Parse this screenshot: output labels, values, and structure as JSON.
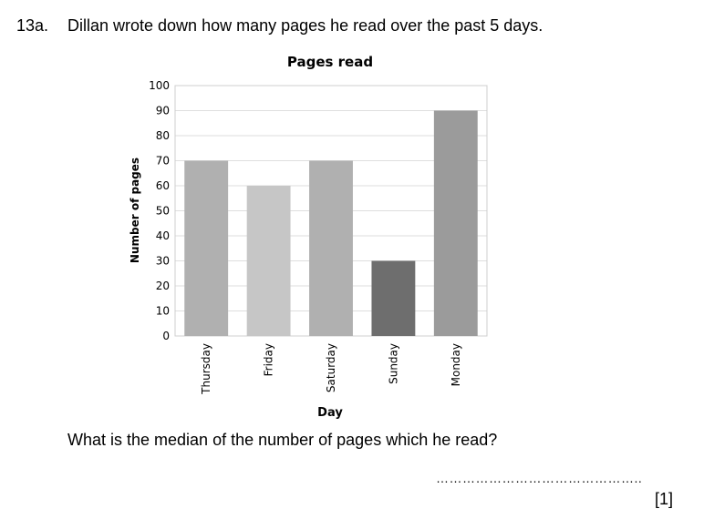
{
  "question": {
    "number": "13a.",
    "text": "Dillan wrote down how many pages he read over the past 5 days.",
    "prompt": "What is the median of the number of pages which he read?",
    "answer_line": "………………………………………..",
    "marks": "[1]"
  },
  "chart_data": {
    "type": "bar",
    "title": "Pages read",
    "xlabel": "Day",
    "ylabel": "Number of pages",
    "categories": [
      "Thursday",
      "Friday",
      "Saturday",
      "Sunday",
      "Monday"
    ],
    "values": [
      70,
      60,
      70,
      30,
      90
    ],
    "colors": [
      "#b0b0b0",
      "#c6c6c6",
      "#b0b0b0",
      "#6e6e6e",
      "#9b9b9b"
    ],
    "ylim": [
      0,
      100
    ],
    "yticks": [
      0,
      10,
      20,
      30,
      40,
      50,
      60,
      70,
      80,
      90,
      100
    ],
    "grid": true
  }
}
